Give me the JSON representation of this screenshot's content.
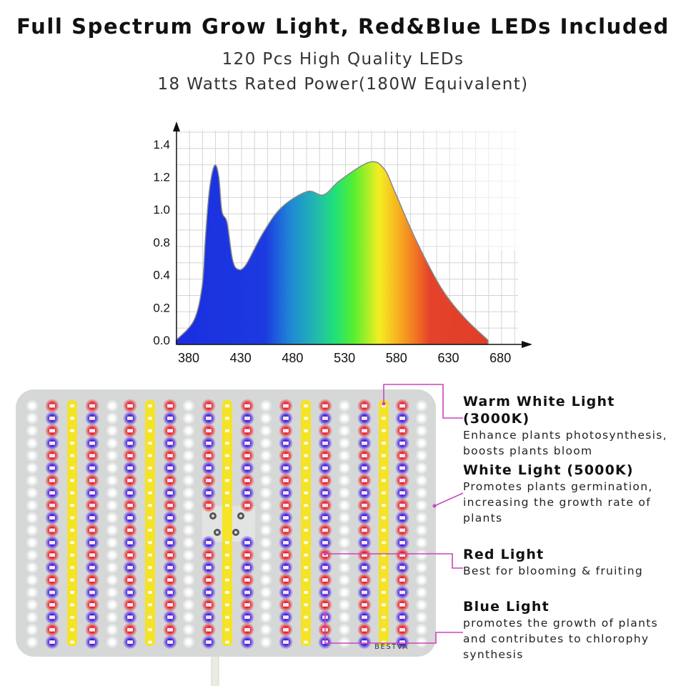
{
  "header": {
    "title": "Full Spectrum Grow Light, Red&Blue LEDs Included",
    "subtitle_1": "120 Pcs High Quality LEDs",
    "subtitle_2": "18 Watts Rated Power(180W Equivalent)"
  },
  "chart_data": {
    "type": "area",
    "title": "",
    "xlabel": "",
    "ylabel": "",
    "x_ticks": [
      "380",
      "430",
      "480",
      "530",
      "580",
      "630",
      "680"
    ],
    "y_ticks": [
      "0.0",
      "0.2",
      "0.4",
      "0.8",
      "1.0",
      "1.2",
      "1.4"
    ],
    "xlim": [
      368,
      690
    ],
    "grid": true,
    "fill": "visible-spectrum gradient",
    "x": [
      368,
      385,
      393,
      396,
      400,
      405,
      409,
      412,
      417,
      422,
      427,
      435,
      451,
      469,
      494,
      510,
      526,
      554,
      568,
      579,
      599,
      623,
      645,
      668
    ],
    "y": [
      0.0,
      0.12,
      0.33,
      0.81,
      1.12,
      1.27,
      1.2,
      0.99,
      0.92,
      0.6,
      0.47,
      0.52,
      0.85,
      1.01,
      1.11,
      1.09,
      1.18,
      1.29,
      1.25,
      1.1,
      0.81,
      0.32,
      0.14,
      0.0
    ]
  },
  "panel": {
    "brand": "BESTVA",
    "colors": {
      "red": "#e8141c",
      "blue": "#3a10e0",
      "yellow": "#f6e41c",
      "white": "#ffffff",
      "body": "#d6d8d8",
      "callout_line": "#cc44bb"
    }
  },
  "callouts": [
    {
      "heading": "Warm White Light (3000K)",
      "lines": [
        "Enhance plants photosynthesis,",
        "boosts plants bloom"
      ]
    },
    {
      "heading": "White Light (5000K)",
      "lines": [
        "Promotes plants germination,",
        "increasing the growth rate of",
        "plants"
      ]
    },
    {
      "heading": "Red Light",
      "lines": [
        "Best for blooming & fruiting"
      ]
    },
    {
      "heading": "Blue Light",
      "lines": [
        "promotes the growth of plants",
        "and contributes to chlorophy",
        "synthesis"
      ]
    }
  ]
}
